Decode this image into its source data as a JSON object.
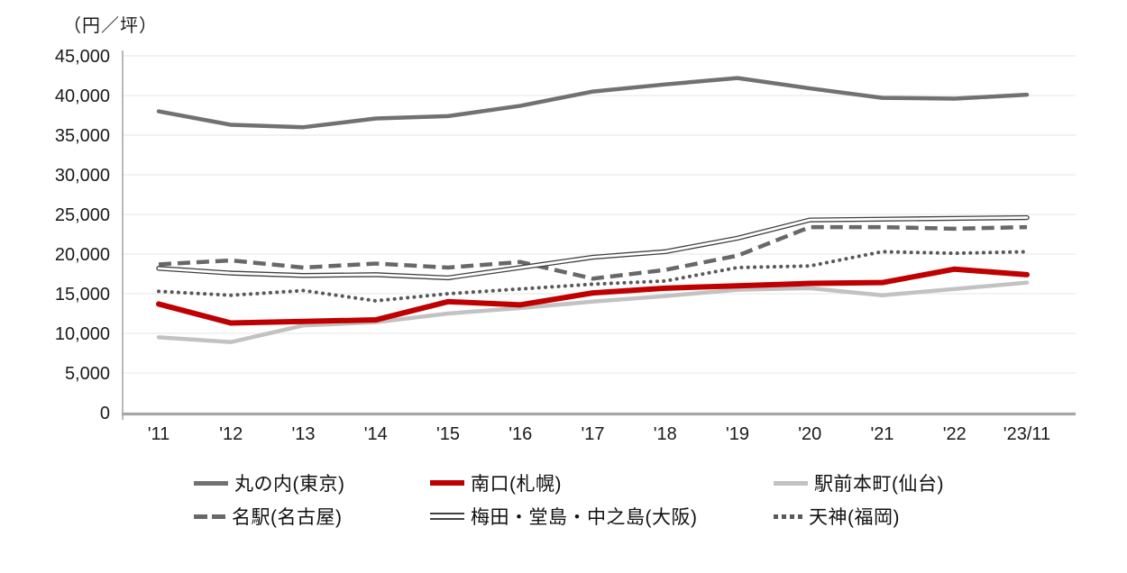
{
  "chart_data": {
    "type": "line",
    "unit_label": "（円／坪）",
    "categories": [
      "'11",
      "'12",
      "'13",
      "'14",
      "'15",
      "'16",
      "'17",
      "'18",
      "'19",
      "'20",
      "'21",
      "'22",
      "'23/11"
    ],
    "y_axis": {
      "min": 0,
      "max": 45000,
      "step": 5000,
      "tick_labels": [
        "0",
        "5,000",
        "10,000",
        "15,000",
        "20,000",
        "25,000",
        "30,000",
        "35,000",
        "40,000",
        "45,000"
      ]
    },
    "grid": "horizontal-only",
    "legend_position": "bottom",
    "series": [
      {
        "name": "丸の内(東京)",
        "line_style": "solid",
        "color": "#717171",
        "width": 4.5,
        "values": [
          38000,
          36300,
          36000,
          37100,
          37400,
          38700,
          40500,
          41400,
          42200,
          40900,
          39700,
          39600,
          40100
        ]
      },
      {
        "name": "南口(札幌)",
        "line_style": "solid",
        "color": "#c00000",
        "width": 6,
        "values": [
          13700,
          11300,
          11500,
          11700,
          14000,
          13600,
          15100,
          15700,
          16000,
          16300,
          16400,
          18100,
          17400
        ]
      },
      {
        "name": "駅前本町(仙台)",
        "line_style": "solid",
        "color": "#c2c2c2",
        "width": 4.5,
        "values": [
          9500,
          8900,
          11000,
          11400,
          12500,
          13200,
          14000,
          14700,
          15500,
          15700,
          14800,
          15600,
          16400
        ]
      },
      {
        "name": "名駅(名古屋)",
        "line_style": "dashed",
        "color": "#686868",
        "width": 4.5,
        "values": [
          18700,
          19200,
          18300,
          18800,
          18300,
          19000,
          16900,
          18000,
          19800,
          23400,
          23400,
          23200,
          23400
        ]
      },
      {
        "name": "梅田・堂島・中之島(大阪)",
        "line_style": "double",
        "color": "#404040",
        "width": 5.4,
        "values": [
          18200,
          17600,
          17300,
          17400,
          17000,
          18300,
          19600,
          20300,
          22000,
          24300,
          24400,
          24500,
          24600
        ]
      },
      {
        "name": "天神(福岡)",
        "line_style": "dotted",
        "color": "#595959",
        "width": 4,
        "values": [
          15300,
          14800,
          15400,
          14100,
          15000,
          15600,
          16200,
          16600,
          18300,
          18500,
          20300,
          20100,
          20300
        ]
      }
    ],
    "legend_rows": [
      [
        0,
        1,
        2
      ],
      [
        3,
        4,
        5
      ]
    ],
    "colors": {
      "axis": "#a6a6a6",
      "gridline": "#e9e9e9",
      "tick_text": "#1a1a1a",
      "accent_red": "#c00000"
    }
  }
}
